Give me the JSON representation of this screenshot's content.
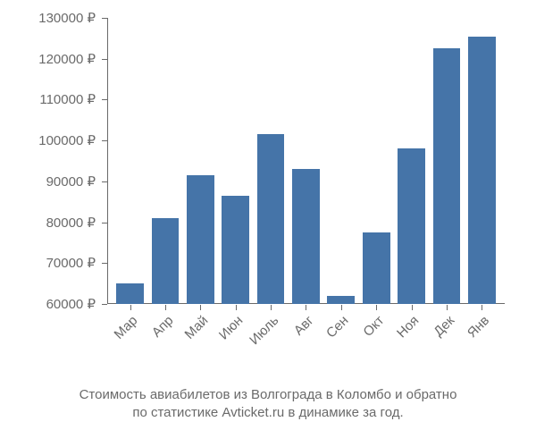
{
  "chart": {
    "type": "bar",
    "categories": [
      "Мар",
      "Апр",
      "Май",
      "Июн",
      "Июль",
      "Авг",
      "Сен",
      "Окт",
      "Ноя",
      "Дек",
      "Янв"
    ],
    "values": [
      65000,
      81000,
      91500,
      86500,
      101500,
      93000,
      62000,
      77500,
      98000,
      122500,
      125500
    ],
    "bar_color": "#4574a8",
    "background_color": "#ffffff",
    "axis_color": "#6a6a6a",
    "tick_label_color": "#6a6a6a",
    "ylim": [
      60000,
      130000
    ],
    "ytick_step": 10000,
    "ytick_labels": [
      "60000 ₽",
      "70000 ₽",
      "80000 ₽",
      "90000 ₽",
      "100000 ₽",
      "110000 ₽",
      "120000 ₽",
      "130000 ₽"
    ],
    "ytick_values": [
      60000,
      70000,
      80000,
      90000,
      100000,
      110000,
      120000,
      130000
    ],
    "tick_fontsize": 15,
    "caption_fontsize": 15,
    "bar_width_ratio": 0.78,
    "xlabel_rotation_deg": -45
  },
  "caption": {
    "line1": "Стоимость авиабилетов из Волгограда в Коломбо и обратно",
    "line2": "по статистике Avticket.ru в динамике за год."
  }
}
